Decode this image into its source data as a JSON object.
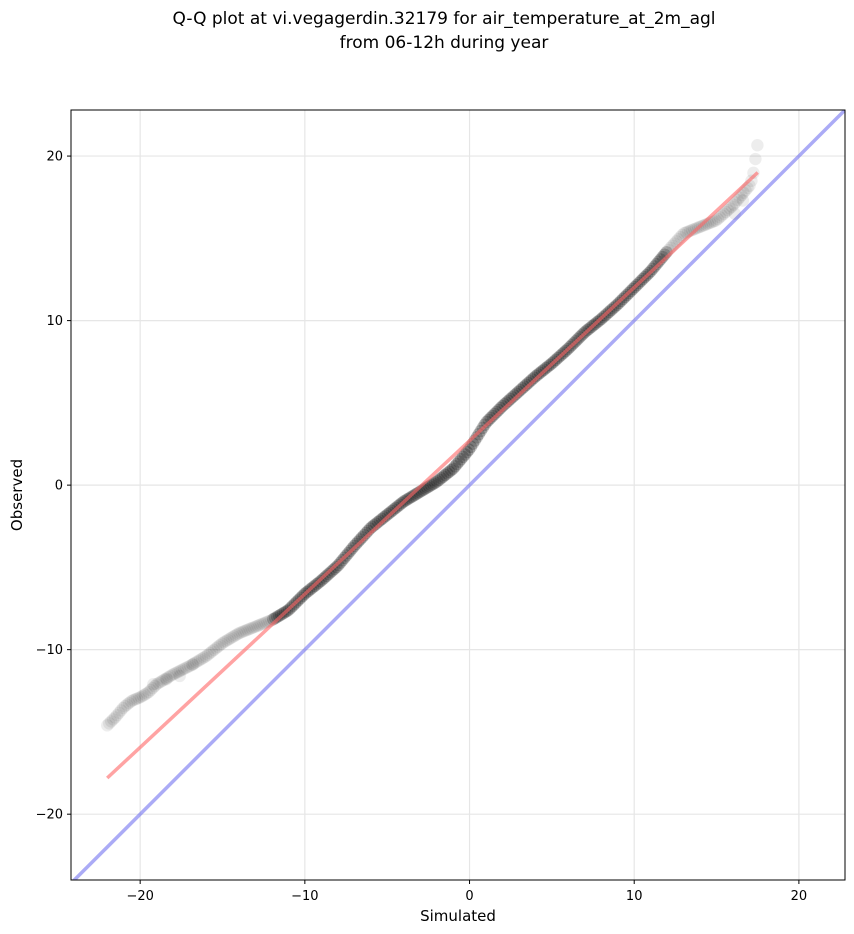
{
  "chart_data": {
    "type": "scatter",
    "title_lines": [
      "Q-Q plot at vi.vegagerdin.32179 for air_temperature_at_2m_agl",
      "from 06-12h during year"
    ],
    "xlabel": "Simulated",
    "ylabel": "Observed",
    "xlim": [
      -24.2,
      22.8
    ],
    "ylim": [
      -24.0,
      22.8
    ],
    "xticks": [
      -20,
      -10,
      0,
      10,
      20
    ],
    "yticks": [
      -20,
      -10,
      0,
      10,
      20
    ],
    "xtick_labels": [
      "−20",
      "−10",
      "0",
      "10",
      "20"
    ],
    "ytick_labels": [
      "−20",
      "−10",
      "0",
      "10",
      "20"
    ],
    "grid": true,
    "colors": {
      "points": "#000000",
      "fit_line": "#ff6666",
      "identity_line": "#6666ee",
      "grid": "#e6e6e6"
    },
    "fit_line": {
      "x": [
        -22.0,
        17.5
      ],
      "y": [
        -17.8,
        19.0
      ]
    },
    "identity_line": {
      "x": [
        -24.2,
        22.8
      ],
      "y": [
        -24.2,
        22.8
      ]
    },
    "quantile_curve": {
      "x": [
        -22.0,
        -21.5,
        -21.0,
        -20.5,
        -20.0,
        -19.5,
        -19.0,
        -18.0,
        -17.0,
        -16.0,
        -15.0,
        -14.0,
        -13.0,
        -12.0,
        -11.0,
        -10.0,
        -9.0,
        -8.0,
        -7.0,
        -6.0,
        -5.0,
        -4.0,
        -3.0,
        -2.0,
        -1.0,
        0.0,
        1.0,
        2.0,
        3.0,
        4.0,
        5.0,
        6.0,
        7.0,
        8.0,
        9.0,
        10.0,
        11.0,
        12.0,
        13.0,
        14.0,
        15.0,
        16.0,
        16.5,
        17.0,
        17.2,
        17.4,
        17.5
      ],
      "y": [
        -14.6,
        -14.1,
        -13.5,
        -13.1,
        -12.9,
        -12.6,
        -12.1,
        -11.5,
        -11.0,
        -10.4,
        -9.6,
        -9.0,
        -8.6,
        -8.2,
        -7.6,
        -6.6,
        -5.8,
        -4.9,
        -3.7,
        -2.6,
        -1.8,
        -1.0,
        -0.4,
        0.2,
        1.0,
        2.2,
        3.8,
        4.8,
        5.7,
        6.6,
        7.4,
        8.3,
        9.3,
        10.1,
        11.0,
        12.0,
        13.0,
        14.2,
        15.3,
        15.7,
        16.1,
        17.0,
        17.6,
        18.2,
        18.7,
        20.1,
        20.8
      ]
    }
  }
}
